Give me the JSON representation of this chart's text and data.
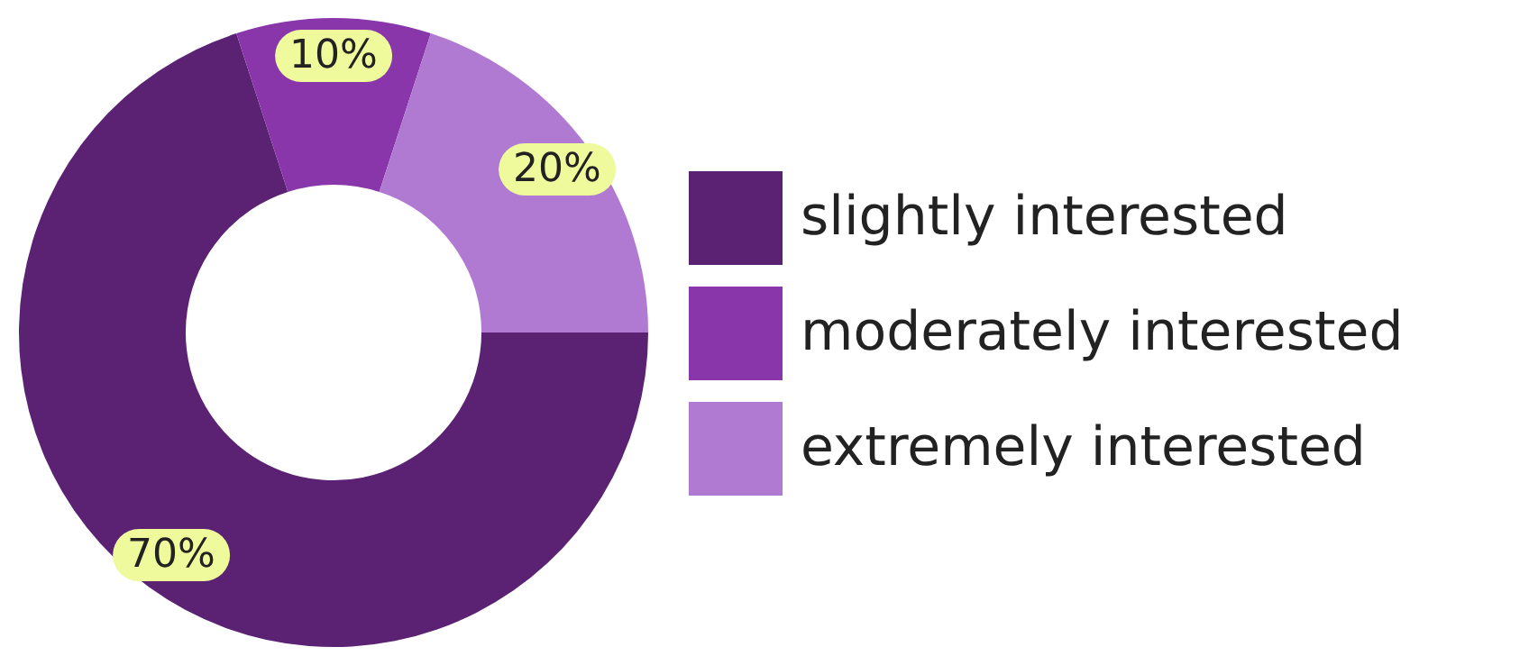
{
  "chart_data": {
    "type": "donut",
    "categories": [
      "slightly interested",
      "moderately interested",
      "extremely interested"
    ],
    "values": [
      70,
      10,
      20
    ],
    "colors": [
      "#5b2274",
      "#8836aa",
      "#b07ad2"
    ],
    "value_labels": [
      "70%",
      "10%",
      "20%"
    ],
    "legend": "right"
  }
}
